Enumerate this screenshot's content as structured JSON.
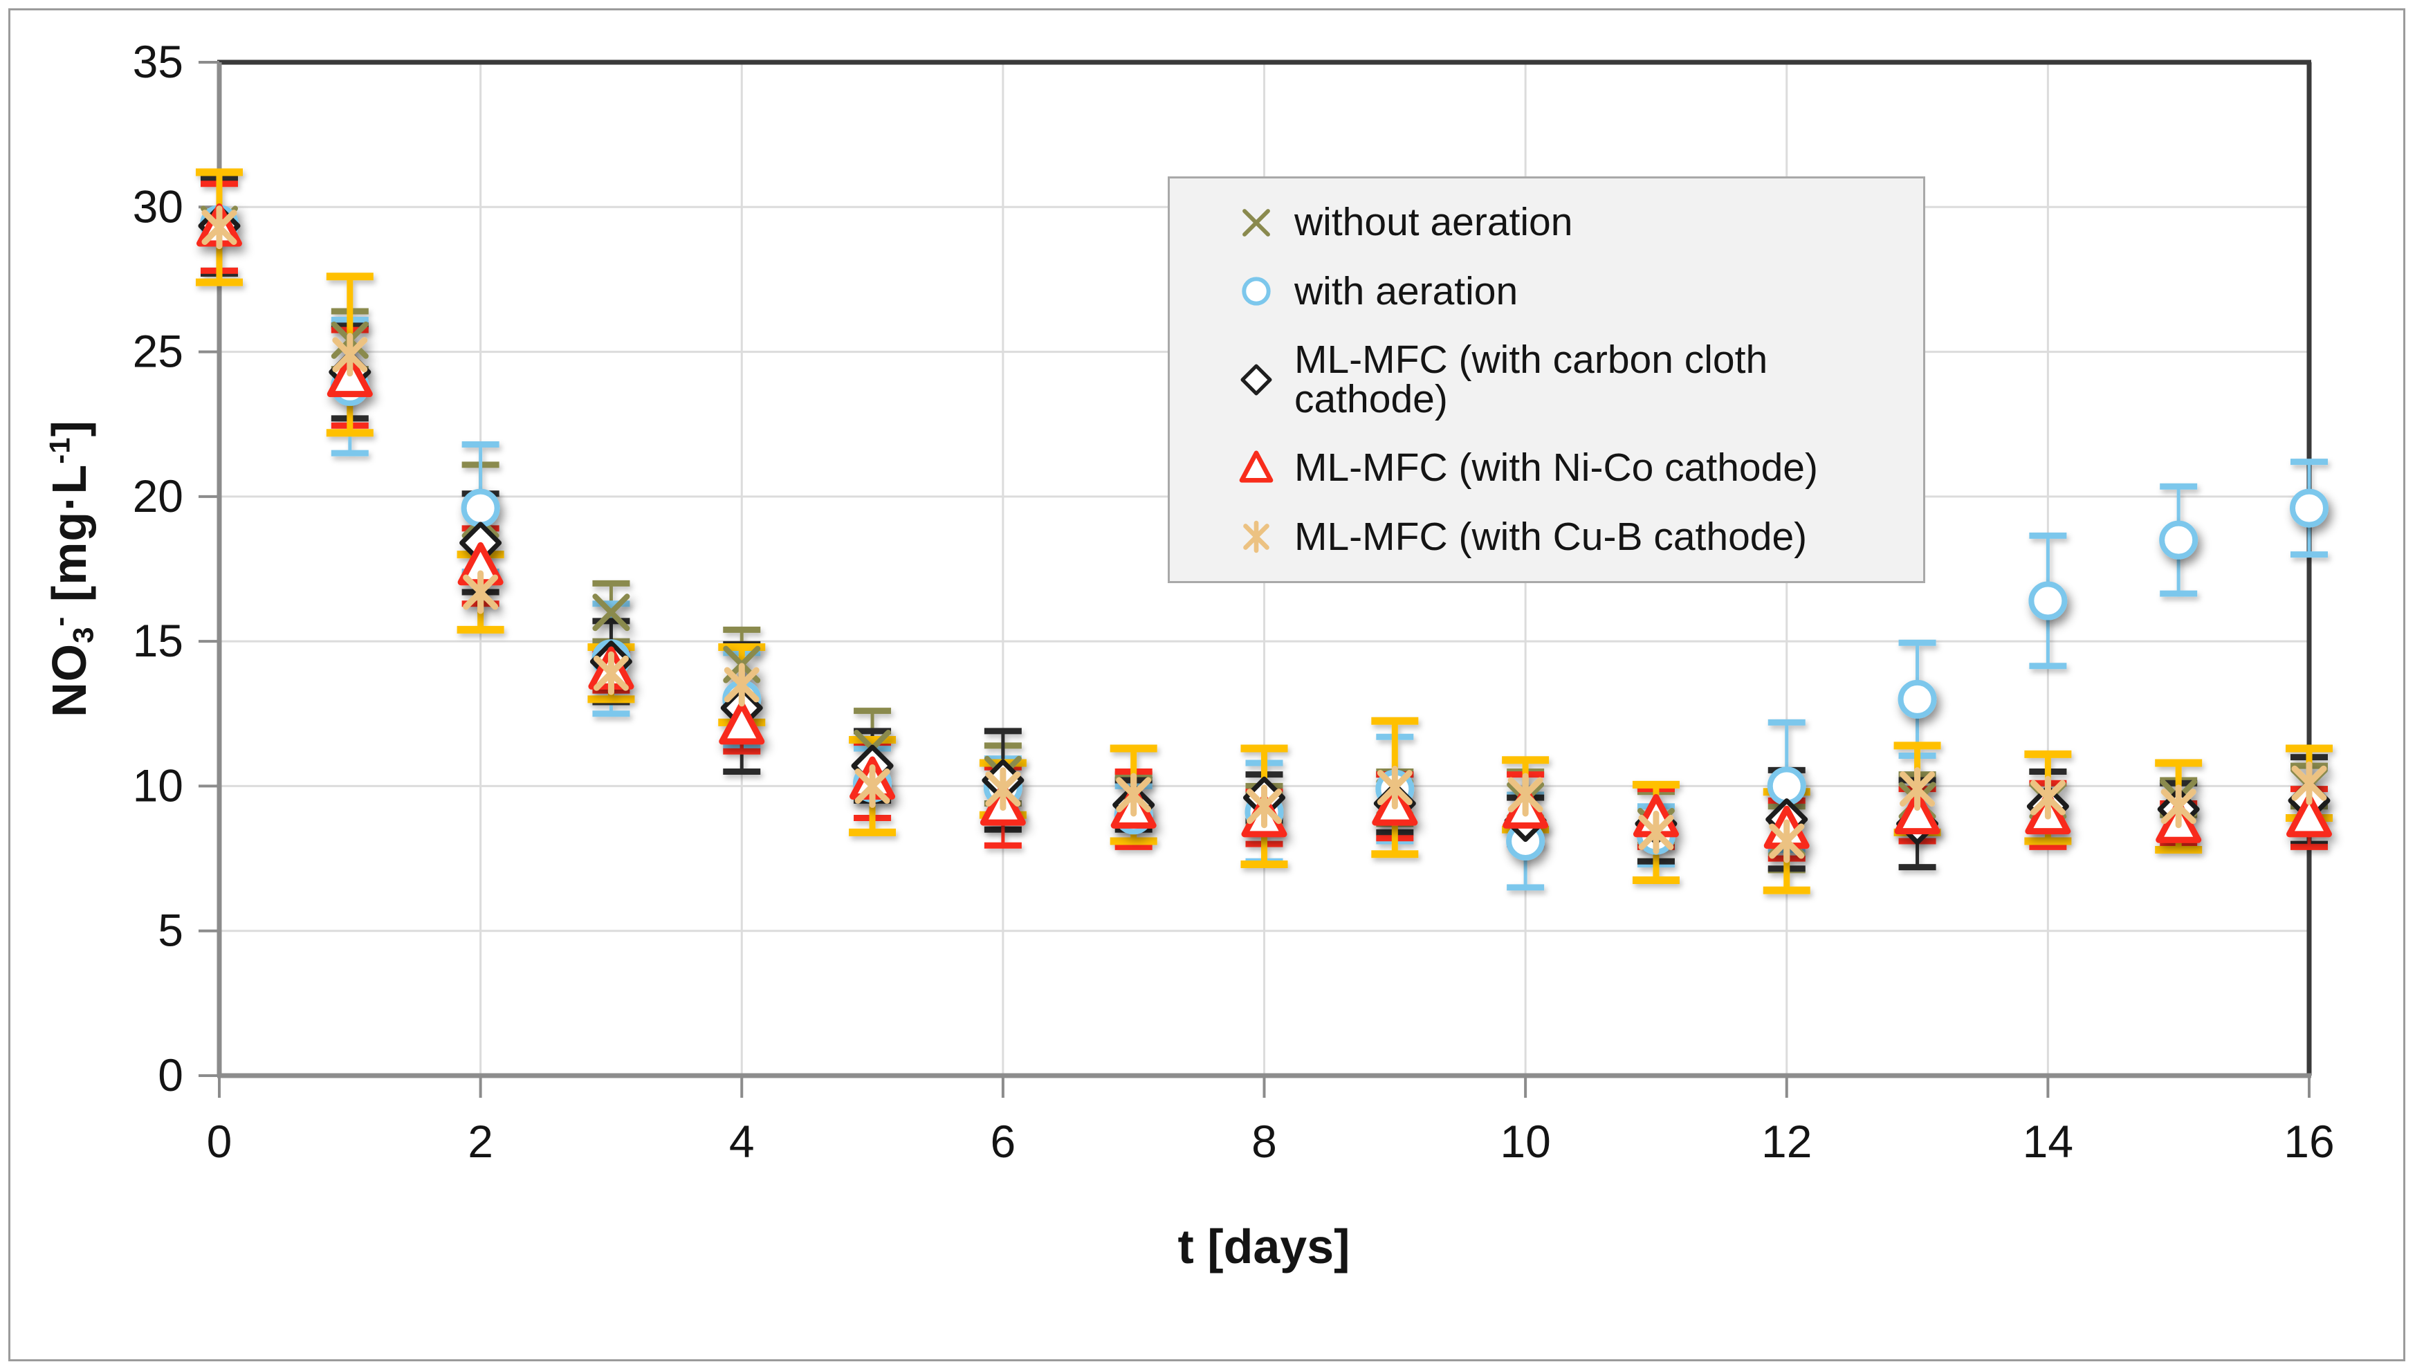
{
  "chart_data": {
    "type": "scatter",
    "title": "",
    "xlabel": "t [days]",
    "ylabel": "NO3- [mg·L-1]",
    "ylabel_parts": {
      "base": "NO",
      "sub": "3",
      "sup": "-",
      "unit_open": " [mg·L",
      "unit_sup": "-1",
      "unit_close": "]"
    },
    "xlim": [
      0,
      16
    ],
    "ylim": [
      0,
      35
    ],
    "xticks": [
      0,
      2,
      4,
      6,
      8,
      10,
      12,
      14,
      16
    ],
    "yticks": [
      0,
      5,
      10,
      15,
      20,
      25,
      30,
      35
    ],
    "grid": "both",
    "legend_position": "upper-right-inside",
    "x_days": [
      0,
      1,
      2,
      3,
      4,
      5,
      6,
      7,
      8,
      9,
      10,
      11,
      12,
      13,
      14,
      15,
      16
    ],
    "series": [
      {
        "name": "without aeration",
        "marker": "x",
        "color": "#8a8a4e",
        "error_color": "#8a8a4e",
        "values": [
          29.4,
          25.4,
          19.2,
          16.0,
          14.2,
          11.3,
          10.4,
          9.7,
          9.2,
          9.6,
          9.5,
          8.6,
          8.2,
          9.5,
          9.5,
          9.6,
          10.0
        ],
        "errors": [
          1.6,
          1.0,
          1.9,
          1.0,
          1.2,
          1.3,
          1.0,
          0.7,
          0.8,
          0.9,
          1.0,
          1.2,
          1.1,
          0.9,
          1.0,
          0.6,
          0.7
        ]
      },
      {
        "name": "with aeration",
        "marker": "circle",
        "color": "#7cc7ec",
        "error_color": "#7cc7ec",
        "values": [
          29.4,
          23.8,
          19.6,
          14.4,
          13.0,
          10.1,
          9.95,
          9.0,
          9.1,
          9.9,
          8.1,
          8.3,
          10.0,
          13.0,
          16.4,
          18.5,
          19.6
        ],
        "errors": [
          1.6,
          2.3,
          2.2,
          1.9,
          1.6,
          1.2,
          1.0,
          1.0,
          1.7,
          1.8,
          1.6,
          1.0,
          2.2,
          1.95,
          2.25,
          1.85,
          1.6
        ]
      },
      {
        "name": "ML-MFC (with carbon cloth cathode)",
        "marker": "diamond",
        "color": "#1f1f1f",
        "error_color": "#2b2b2b",
        "values": [
          29.35,
          24.3,
          18.4,
          14.3,
          12.7,
          10.7,
          10.2,
          9.35,
          9.6,
          9.4,
          8.8,
          8.7,
          8.85,
          8.7,
          9.3,
          9.2,
          9.5
        ],
        "errors": [
          1.65,
          1.6,
          1.7,
          1.4,
          2.2,
          1.2,
          1.7,
          0.85,
          0.8,
          1.0,
          0.8,
          1.3,
          1.7,
          1.5,
          1.2,
          0.9,
          1.5
        ]
      },
      {
        "name": "ML-MFC (with Ni-Co cathode)",
        "marker": "triangle",
        "color": "#f82c1b",
        "error_color": "#f82c1b",
        "values": [
          29.3,
          24.1,
          17.6,
          14.0,
          12.1,
          10.2,
          9.3,
          9.2,
          8.9,
          9.3,
          9.2,
          8.9,
          8.5,
          9.0,
          9.0,
          8.7,
          8.9
        ],
        "errors": [
          1.5,
          1.65,
          1.3,
          0.7,
          0.9,
          1.3,
          1.35,
          1.3,
          0.9,
          1.1,
          1.2,
          1.0,
          1.0,
          0.9,
          1.1,
          0.7,
          1.0
        ]
      },
      {
        "name": "ML-MFC (with Cu-B cathode)",
        "marker": "asterisk",
        "color": "#ecc282",
        "error_color": "#ffc000",
        "values": [
          29.3,
          24.9,
          16.7,
          13.9,
          13.5,
          10.0,
          9.9,
          9.7,
          9.3,
          9.95,
          9.7,
          8.4,
          8.1,
          9.9,
          9.6,
          9.3,
          10.1
        ],
        "errors": [
          1.9,
          2.7,
          1.3,
          0.9,
          1.3,
          1.6,
          0.9,
          1.6,
          2.0,
          2.3,
          1.2,
          1.65,
          1.7,
          1.5,
          1.5,
          1.5,
          1.2
        ]
      }
    ],
    "style_colors": {
      "gridline": "#dcdcdc",
      "axis_gray": "#8c8c8c",
      "dark_border": "#3a3a3a",
      "outer_border": "#9b9b9b",
      "legend_fill": "#f2f2f2",
      "legend_border": "#a9a9a9",
      "text": "#141414"
    }
  }
}
